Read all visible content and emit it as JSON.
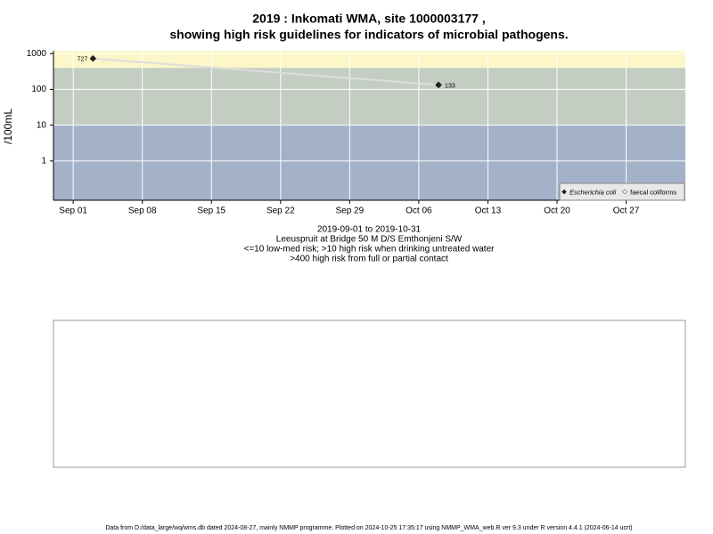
{
  "chart_data": {
    "type": "line",
    "title": "2019 : Inkomati WMA, site 1000003177 ,",
    "subtitle": "showing high risk guidelines for indicators of microbial pathogens.",
    "y_label": "/100mL",
    "x": [
      "2019-09-03",
      "2019-10-08"
    ],
    "series": [
      {
        "name": "Escherichia coli",
        "color": "#222222",
        "values": [
          727,
          133
        ]
      },
      {
        "name": "faecal coliforms",
        "color": "#ffffff",
        "values": [
          null,
          null
        ]
      }
    ],
    "line_color": "#dddddd",
    "xlim": [
      "2019-08-30",
      "2019-11-02"
    ],
    "xticks": [
      {
        "value": "2019-09-01",
        "label": "Sep 01"
      },
      {
        "value": "2019-09-08",
        "label": "Sep 08"
      },
      {
        "value": "2019-09-15",
        "label": "Sep 15"
      },
      {
        "value": "2019-09-22",
        "label": "Sep 22"
      },
      {
        "value": "2019-09-29",
        "label": "Sep 29"
      },
      {
        "value": "2019-10-06",
        "label": "Oct 06"
      },
      {
        "value": "2019-10-13",
        "label": "Oct 13"
      },
      {
        "value": "2019-10-20",
        "label": "Oct 20"
      },
      {
        "value": "2019-10-27",
        "label": "Oct 27"
      }
    ],
    "ylim": [
      0.08,
      1200
    ],
    "yticks": [
      1,
      10,
      100,
      1000
    ],
    "log_y": true,
    "grid": true,
    "thresholds": [
      10,
      400
    ],
    "band_colors": [
      "#a3b1c9",
      "#c3cdc2",
      "#fcf6c9"
    ],
    "legend": "bottom-right",
    "notes": [
      "2019-09-01 to 2019-10-31",
      "Leeuspruit at Bridge 50 M D/S Emthonjeni S/W",
      "<=10 low-med risk; >10 high risk when drinking untreated water",
      ">400 high risk from full or partial contact"
    ],
    "footer": "Data from D:/data_large/wq/wms.db dated 2024-08-27, mainly NMMP programme. Plotted on 2024-10-25 17:35:17 using NMMP_WMA_web.R ver 9.3 under R version 4.4.1 (2024-06-14 ucrt)"
  }
}
